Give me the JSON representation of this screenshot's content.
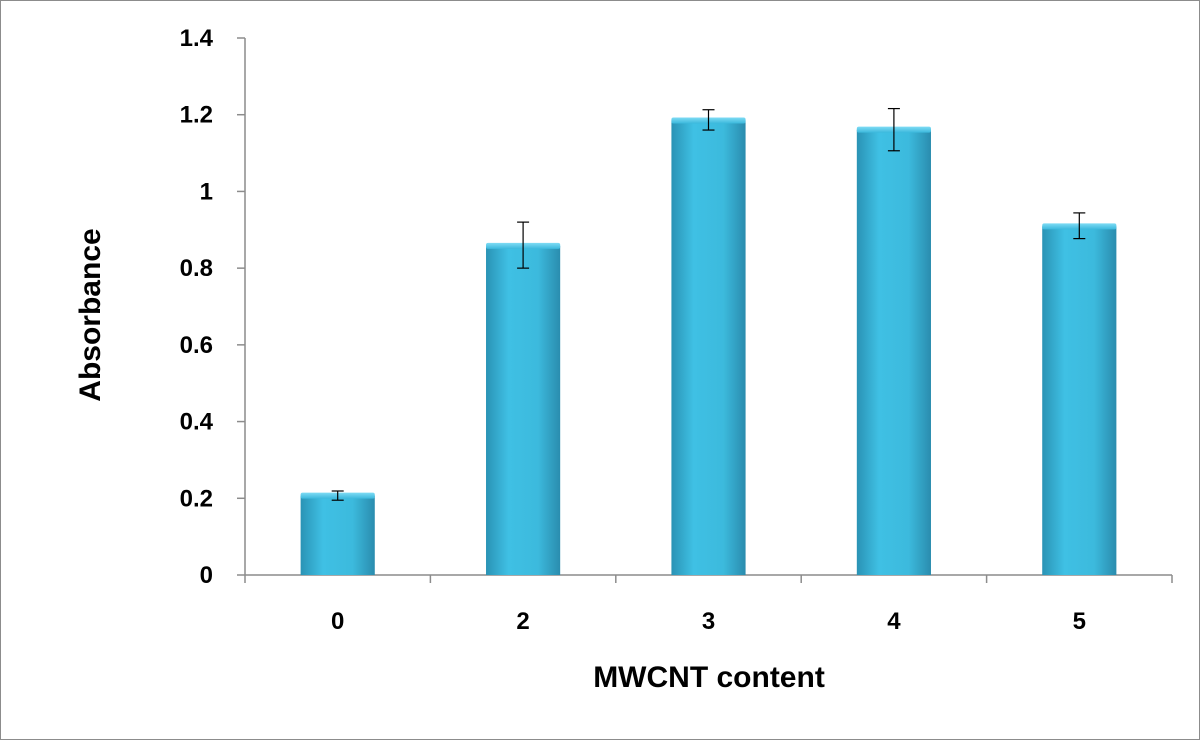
{
  "chart_data": {
    "type": "bar",
    "title": "",
    "xlabel": "MWCNT content",
    "ylabel": "Absorbance",
    "categories": [
      "0",
      "2",
      "3",
      "4",
      "5"
    ],
    "values": [
      0.207,
      0.858,
      1.185,
      1.161,
      0.909
    ],
    "error_plus": [
      0.012,
      0.062,
      0.028,
      0.055,
      0.035
    ],
    "error_minus": [
      0.012,
      0.058,
      0.025,
      0.055,
      0.032
    ],
    "ylim": [
      0,
      1.4
    ],
    "yticks": [
      0,
      0.2,
      0.4,
      0.6,
      0.8,
      1,
      1.2,
      1.4
    ],
    "ytick_labels": [
      "0",
      "0.2",
      "0.4",
      "0.6",
      "0.8",
      "1",
      "1.2",
      "1.4"
    ],
    "grid": false,
    "legend": "none",
    "bar_color": "#3bb8dc",
    "bar_color_dark": "#2a8eb0",
    "axis_color": "#8c8c8c"
  }
}
